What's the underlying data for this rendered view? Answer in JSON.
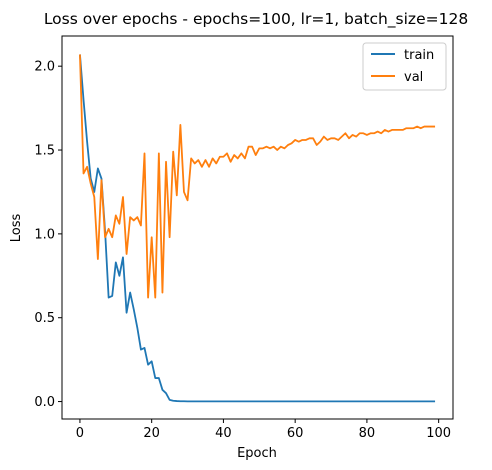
{
  "chart_data": {
    "type": "line",
    "title": "Loss over epochs - epochs=100, lr=1, batch_size=128",
    "xlabel": "Epoch",
    "ylabel": "Loss",
    "xlim": [
      -5,
      104
    ],
    "ylim": [
      -0.104,
      2.18
    ],
    "xticks": [
      0,
      20,
      40,
      60,
      80,
      100
    ],
    "yticks": [
      0.0,
      0.5,
      1.0,
      1.5,
      2.0
    ],
    "ytick_labels": [
      "0.0",
      "0.5",
      "1.0",
      "1.5",
      "2.0"
    ],
    "grid": false,
    "legend_position": "top-right",
    "x": [
      0,
      1,
      2,
      3,
      4,
      5,
      6,
      7,
      8,
      9,
      10,
      11,
      12,
      13,
      14,
      15,
      16,
      17,
      18,
      19,
      20,
      21,
      22,
      23,
      24,
      25,
      26,
      27,
      28,
      29,
      30,
      31,
      32,
      33,
      34,
      35,
      36,
      37,
      38,
      39,
      40,
      41,
      42,
      43,
      44,
      45,
      46,
      47,
      48,
      49,
      50,
      51,
      52,
      53,
      54,
      55,
      56,
      57,
      58,
      59,
      60,
      61,
      62,
      63,
      64,
      65,
      66,
      67,
      68,
      69,
      70,
      71,
      72,
      73,
      74,
      75,
      76,
      77,
      78,
      79,
      80,
      81,
      82,
      83,
      84,
      85,
      86,
      87,
      88,
      89,
      90,
      91,
      92,
      93,
      94,
      95,
      96,
      97,
      98,
      99
    ],
    "series": [
      {
        "name": "train",
        "color": "#1f77b4",
        "values": [
          2.07,
          1.8,
          1.55,
          1.33,
          1.25,
          1.39,
          1.33,
          1.02,
          0.62,
          0.63,
          0.83,
          0.75,
          0.86,
          0.53,
          0.65,
          0.55,
          0.44,
          0.31,
          0.32,
          0.22,
          0.24,
          0.14,
          0.14,
          0.07,
          0.05,
          0.01,
          0.005,
          0.003,
          0.002,
          0.002,
          0.001,
          0.001,
          0.001,
          0.001,
          0.001,
          0.001,
          0.001,
          0.001,
          0.001,
          0.001,
          0.001,
          0.001,
          0.001,
          0.001,
          0.001,
          0.001,
          0.001,
          0.001,
          0.001,
          0.001,
          0.001,
          0.001,
          0.001,
          0.001,
          0.001,
          0.001,
          0.001,
          0.001,
          0.001,
          0.001,
          0.001,
          0.001,
          0.001,
          0.001,
          0.001,
          0.001,
          0.001,
          0.001,
          0.001,
          0.001,
          0.001,
          0.001,
          0.001,
          0.001,
          0.001,
          0.001,
          0.001,
          0.001,
          0.001,
          0.001,
          0.001,
          0.001,
          0.001,
          0.001,
          0.001,
          0.001,
          0.001,
          0.001,
          0.001,
          0.001,
          0.001,
          0.001,
          0.001,
          0.001,
          0.001,
          0.001,
          0.001,
          0.001,
          0.001,
          0.001
        ]
      },
      {
        "name": "val",
        "color": "#ff7f0e",
        "values": [
          2.07,
          1.36,
          1.4,
          1.3,
          1.22,
          0.85,
          1.32,
          0.98,
          1.03,
          0.98,
          1.11,
          1.06,
          1.22,
          0.88,
          1.1,
          1.08,
          1.1,
          1.05,
          1.48,
          0.62,
          0.98,
          0.62,
          1.48,
          0.65,
          1.43,
          0.98,
          1.49,
          1.23,
          1.65,
          1.25,
          1.2,
          1.45,
          1.42,
          1.44,
          1.4,
          1.44,
          1.4,
          1.45,
          1.42,
          1.46,
          1.46,
          1.48,
          1.43,
          1.47,
          1.45,
          1.48,
          1.45,
          1.52,
          1.52,
          1.47,
          1.51,
          1.51,
          1.52,
          1.51,
          1.52,
          1.5,
          1.52,
          1.51,
          1.53,
          1.54,
          1.56,
          1.55,
          1.56,
          1.56,
          1.57,
          1.57,
          1.53,
          1.55,
          1.58,
          1.56,
          1.57,
          1.57,
          1.56,
          1.58,
          1.6,
          1.57,
          1.59,
          1.58,
          1.6,
          1.6,
          1.59,
          1.6,
          1.6,
          1.61,
          1.6,
          1.62,
          1.61,
          1.62,
          1.62,
          1.62,
          1.62,
          1.63,
          1.63,
          1.63,
          1.64,
          1.63,
          1.64,
          1.64,
          1.64,
          1.64
        ]
      }
    ]
  }
}
